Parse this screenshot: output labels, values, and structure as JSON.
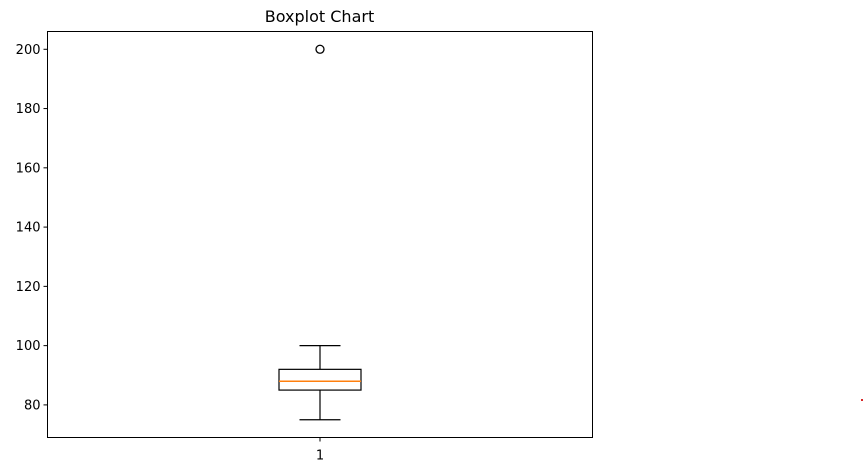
{
  "chart_data": {
    "type": "boxplot",
    "title": "Boxplot Chart",
    "xlabel": "",
    "ylabel": "",
    "categories": [
      "1"
    ],
    "boxes": [
      {
        "category": "1",
        "whisker_low": 75,
        "q1": 85,
        "median": 88,
        "q3": 92,
        "whisker_high": 100,
        "outliers": [
          200
        ]
      }
    ],
    "ylim": [
      69,
      206
    ],
    "yticks": [
      80,
      100,
      120,
      140,
      160,
      180,
      200
    ],
    "grid": false,
    "colors": {
      "box": "#000000",
      "median": "#ff7f0e",
      "outlier": "#000000",
      "stray_mark": "#d62728"
    }
  }
}
